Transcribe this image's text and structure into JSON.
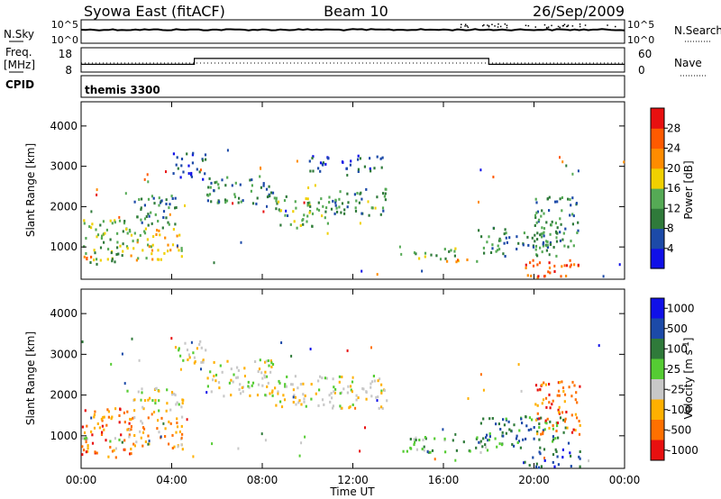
{
  "header": {
    "title": "Syowa East (fitACF)",
    "beam": "Beam 10",
    "date": "26/Sep/2009"
  },
  "nsky": {
    "label": "N.Sky",
    "ticks": [
      "10^5",
      "10^0"
    ],
    "right_label": "N.Search",
    "right_ticks": [
      "10^5",
      "10^0"
    ]
  },
  "freq": {
    "label_line1": "Freq.",
    "label_line2": "[MHz]",
    "ticks": [
      "18",
      "8"
    ],
    "right_label": "Nave",
    "right_ticks": [
      "60",
      "0"
    ],
    "steps": [
      [
        0,
        11.2
      ],
      [
        5.0,
        11.2
      ],
      [
        5.0,
        13.6
      ],
      [
        18.0,
        13.6
      ],
      [
        18.0,
        11.2
      ],
      [
        24,
        11.2
      ]
    ]
  },
  "cpid": {
    "label": "CPID",
    "value": "themis 3300"
  },
  "chart_data": [
    {
      "type": "heatmap",
      "name": "power",
      "xlabel": "Time UT",
      "ylabel": "Slant Range [km]",
      "xlim": [
        0,
        24
      ],
      "ylim": [
        200,
        4600
      ],
      "x_ticks": [
        "00:00",
        "04:00",
        "08:00",
        "12:00",
        "16:00",
        "20:00",
        "00:00"
      ],
      "y_ticks": [
        1000,
        2000,
        3000,
        4000
      ],
      "colorbar_label": "Power [dB]",
      "colorbar_ticks": [
        "4",
        "8",
        "12",
        "16",
        "20",
        "24",
        "28"
      ],
      "colors": [
        "#1010e8",
        "#1c4aa8",
        "#2f7a3a",
        "#55aa55",
        "#f0d000",
        "#ff8c00",
        "#ff5a00",
        "#e81010"
      ],
      "regions": [
        {
          "x": [
            0.0,
            2.0
          ],
          "y": [
            600,
            1700
          ],
          "level": 3
        },
        {
          "x": [
            0.0,
            2.0
          ],
          "y": [
            700,
            820
          ],
          "level": 5
        },
        {
          "x": [
            2.0,
            4.5
          ],
          "y": [
            700,
            1500
          ],
          "level": 4
        },
        {
          "x": [
            2.0,
            4.2
          ],
          "y": [
            1500,
            2300
          ],
          "level": 2
        },
        {
          "x": [
            4.0,
            5.5
          ],
          "y": [
            2700,
            3400
          ],
          "level": 1
        },
        {
          "x": [
            5.5,
            8.5
          ],
          "y": [
            2100,
            2800
          ],
          "level": 2
        },
        {
          "x": [
            8.5,
            11.0
          ],
          "y": [
            1500,
            2300
          ],
          "level": 3
        },
        {
          "x": [
            11.0,
            13.5
          ],
          "y": [
            1800,
            2500
          ],
          "level": 2
        },
        {
          "x": [
            10.0,
            13.5
          ],
          "y": [
            2900,
            3300
          ],
          "level": 1
        },
        {
          "x": [
            14.5,
            16.5
          ],
          "y": [
            700,
            1000
          ],
          "level": 3
        },
        {
          "x": [
            16.0,
            17.5
          ],
          "y": [
            650,
            780
          ],
          "level": 4
        },
        {
          "x": [
            17.5,
            21.0
          ],
          "y": [
            800,
            1500
          ],
          "level": 2
        },
        {
          "x": [
            19.5,
            22.0
          ],
          "y": [
            250,
            700
          ],
          "level": 6
        },
        {
          "x": [
            20.0,
            22.0
          ],
          "y": [
            1000,
            2300
          ],
          "level": 2
        }
      ]
    },
    {
      "type": "heatmap",
      "name": "velocity",
      "xlabel": "Time UT",
      "ylabel": "Slant Range [km]",
      "xlim": [
        0,
        24
      ],
      "ylim": [
        200,
        4600
      ],
      "x_ticks": [
        "00:00",
        "04:00",
        "08:00",
        "12:00",
        "16:00",
        "20:00",
        "00:00"
      ],
      "y_ticks": [
        1000,
        2000,
        3000,
        4000
      ],
      "colorbar_label": "Velocity [m s",
      "colorbar_label_superscript": "-1",
      "colorbar_label_suffix": "]",
      "colorbar_ticks": [
        "1000",
        "500",
        "100",
        "25",
        "-25",
        "-100",
        "-500",
        "-1000"
      ],
      "colors": [
        "#1010e8",
        "#1c4aa8",
        "#2f7a3a",
        "#55cc33",
        "#c8c8c8",
        "#ffb000",
        "#ff7000",
        "#e81010"
      ],
      "regions": [
        {
          "x": [
            0.0,
            2.2
          ],
          "y": [
            500,
            1700
          ],
          "level": 6
        },
        {
          "x": [
            0.0,
            2.0
          ],
          "y": [
            850,
            1000
          ],
          "level": 3
        },
        {
          "x": [
            2.0,
            4.5
          ],
          "y": [
            700,
            1500
          ],
          "level": 5
        },
        {
          "x": [
            2.0,
            4.5
          ],
          "y": [
            1600,
            2200
          ],
          "level": 4
        },
        {
          "x": [
            4.0,
            5.5
          ],
          "y": [
            2800,
            3400
          ],
          "level": 4
        },
        {
          "x": [
            5.5,
            8.5
          ],
          "y": [
            2000,
            2900
          ],
          "level": 4
        },
        {
          "x": [
            8.5,
            13.5
          ],
          "y": [
            1700,
            2500
          ],
          "level": 4
        },
        {
          "x": [
            14.0,
            18.0
          ],
          "y": [
            600,
            1000
          ],
          "level": 3
        },
        {
          "x": [
            17.5,
            21.5
          ],
          "y": [
            700,
            1500
          ],
          "level": 2
        },
        {
          "x": [
            19.5,
            22.0
          ],
          "y": [
            250,
            700
          ],
          "level": 1
        },
        {
          "x": [
            20.0,
            22.0
          ],
          "y": [
            1000,
            2400
          ],
          "level": 6
        }
      ]
    }
  ]
}
